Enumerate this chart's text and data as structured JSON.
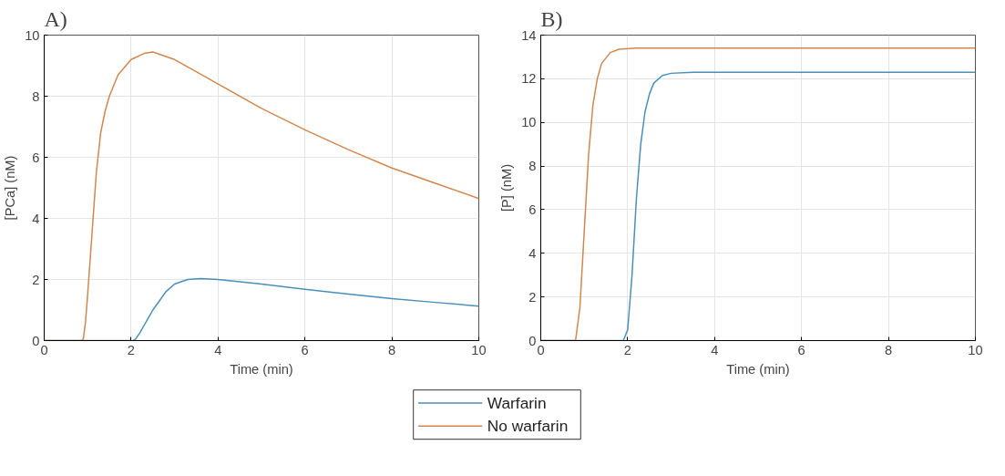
{
  "chart_data": [
    {
      "type": "line",
      "title": "A)",
      "xlabel": "Time (min)",
      "ylabel": "[PCa] (nM)",
      "xlim": [
        0,
        10
      ],
      "ylim": [
        0,
        10
      ],
      "xticks": [
        0,
        2,
        4,
        6,
        8,
        10
      ],
      "yticks": [
        0,
        2,
        4,
        6,
        8,
        10
      ],
      "grid": true,
      "legend": "bottom",
      "line_style": "solid",
      "series": [
        {
          "name": "Warfarin",
          "color": "#4a8fb8",
          "x": [
            0,
            2.05,
            2.1,
            2.2,
            2.3,
            2.4,
            2.5,
            2.65,
            2.8,
            3.0,
            3.3,
            3.6,
            4,
            5,
            6,
            7,
            8,
            9,
            10
          ],
          "values": [
            0,
            0,
            0.05,
            0.25,
            0.5,
            0.75,
            1.0,
            1.3,
            1.6,
            1.85,
            2.0,
            2.03,
            2.0,
            1.85,
            1.68,
            1.52,
            1.37,
            1.25,
            1.13
          ]
        },
        {
          "name": "No warfarin",
          "color": "#d2874f",
          "x": [
            0,
            0.85,
            0.9,
            0.95,
            1.0,
            1.1,
            1.2,
            1.3,
            1.4,
            1.5,
            1.7,
            2.0,
            2.3,
            2.5,
            3.0,
            3.5,
            4,
            5,
            6,
            7,
            8,
            9,
            10
          ],
          "values": [
            0,
            0,
            0.05,
            0.6,
            1.5,
            3.5,
            5.5,
            6.8,
            7.5,
            8.0,
            8.7,
            9.2,
            9.4,
            9.45,
            9.2,
            8.8,
            8.4,
            7.6,
            6.9,
            6.25,
            5.65,
            5.15,
            4.65
          ]
        }
      ]
    },
    {
      "type": "line",
      "title": "B)",
      "xlabel": "Time (min)",
      "ylabel": "[P] (nM)",
      "xlim": [
        0,
        10
      ],
      "ylim": [
        0,
        14
      ],
      "xticks": [
        0,
        2,
        4,
        6,
        8,
        10
      ],
      "yticks": [
        0,
        2,
        4,
        6,
        8,
        10,
        12,
        14
      ],
      "grid": true,
      "line_style": "solid",
      "series": [
        {
          "color": "#4a8fb8",
          "x": [
            0,
            1.9,
            2.0,
            2.1,
            2.2,
            2.3,
            2.4,
            2.5,
            2.6,
            2.8,
            3.0,
            3.5,
            5,
            10
          ],
          "values": [
            0,
            0,
            0.5,
            3,
            6.5,
            9,
            10.5,
            11.3,
            11.8,
            12.15,
            12.25,
            12.3,
            12.3,
            12.3
          ]
        },
        {
          "color": "#d2874f",
          "x": [
            0,
            0.8,
            0.9,
            1.0,
            1.1,
            1.2,
            1.3,
            1.4,
            1.6,
            1.8,
            2.2,
            5,
            10
          ],
          "values": [
            0,
            0,
            1.5,
            5,
            8.5,
            10.8,
            12.0,
            12.7,
            13.2,
            13.35,
            13.4,
            13.4,
            13.4
          ]
        }
      ]
    }
  ]
}
